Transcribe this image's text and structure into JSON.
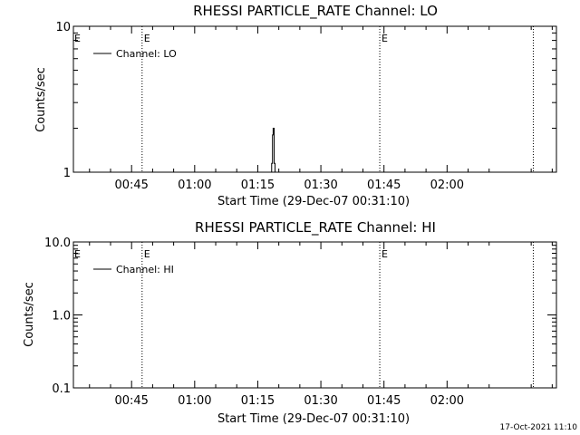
{
  "footer_timestamp": "17-Oct-2021 11:10",
  "chart_data": [
    {
      "type": "line",
      "title": "RHESSI PARTICLE_RATE Channel: LO",
      "xlabel": "Start Time (29-Dec-07 00:31:10)",
      "ylabel": "Counts/sec",
      "y_scale": "log",
      "ylim": [
        1,
        10
      ],
      "yticks": [
        {
          "value": 1,
          "label": "1"
        },
        {
          "value": 10,
          "label": "10"
        }
      ],
      "xlim_minutes_of_day": [
        31.17,
        146
      ],
      "xticks": [
        {
          "value": 45,
          "label": "00:45"
        },
        {
          "value": 60,
          "label": "01:00"
        },
        {
          "value": 75,
          "label": "01:15"
        },
        {
          "value": 90,
          "label": "01:30"
        },
        {
          "value": 105,
          "label": "01:45"
        },
        {
          "value": 120,
          "label": "02:00"
        }
      ],
      "event_lines": [
        {
          "time": 47.5,
          "marker": "E"
        },
        {
          "time": 104.0,
          "marker": "E"
        },
        {
          "time": 140.5,
          "marker": ""
        }
      ],
      "legend": {
        "label": "Channel: LO",
        "placement": "top-left"
      },
      "series": [
        {
          "name": "Channel: LO",
          "points": [
            [
              78.3,
              1
            ],
            [
              78.3,
              1.15
            ],
            [
              78.5,
              1.15
            ],
            [
              78.5,
              1.8
            ],
            [
              78.65,
              1.8
            ],
            [
              78.65,
              2
            ],
            [
              78.9,
              2
            ],
            [
              78.9,
              1.15
            ],
            [
              79.1,
              1.15
            ],
            [
              79.1,
              1
            ]
          ]
        }
      ]
    },
    {
      "type": "line",
      "title": "RHESSI PARTICLE_RATE Channel: HI",
      "xlabel": "Start Time (29-Dec-07 00:31:10)",
      "ylabel": "Counts/sec",
      "y_scale": "log",
      "ylim": [
        0.1,
        10
      ],
      "yticks": [
        {
          "value": 0.1,
          "label": "0.1"
        },
        {
          "value": 1,
          "label": "1.0"
        },
        {
          "value": 10,
          "label": "10.0"
        }
      ],
      "xlim_minutes_of_day": [
        31.17,
        146
      ],
      "xticks": [
        {
          "value": 45,
          "label": "00:45"
        },
        {
          "value": 60,
          "label": "01:00"
        },
        {
          "value": 75,
          "label": "01:15"
        },
        {
          "value": 90,
          "label": "01:30"
        },
        {
          "value": 105,
          "label": "01:45"
        },
        {
          "value": 120,
          "label": "02:00"
        }
      ],
      "event_lines": [
        {
          "time": 47.5,
          "marker": "E"
        },
        {
          "time": 104.0,
          "marker": "E"
        },
        {
          "time": 140.5,
          "marker": ""
        }
      ],
      "legend": {
        "label": "Channel: HI",
        "placement": "top-left"
      },
      "series": [
        {
          "name": "Channel: HI",
          "points": []
        }
      ]
    }
  ]
}
